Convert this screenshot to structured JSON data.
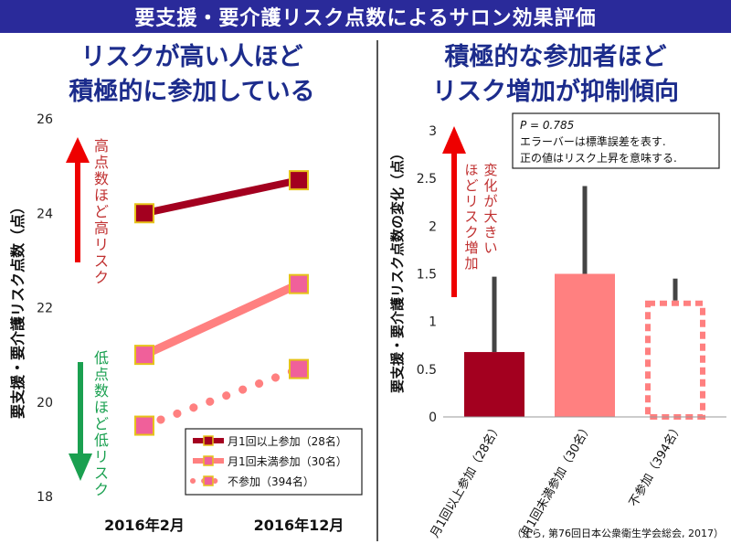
{
  "banner": "要支援・要介護リスク点数によるサロン効果評価",
  "left": {
    "heading1": "リスクが高い人ほど",
    "heading2": "積極的に参加している",
    "up_note": "高点数ほど高リスク",
    "down_note": "低点数ほど低リスク"
  },
  "right": {
    "heading1": "積極的な参加者ほど",
    "heading2": "リスク増加が抑制傾向",
    "up_note_col1": "変化が大きい",
    "up_note_col2": "ほどリスク増",
    "up_note_col3": "加",
    "stat_p": "P = 0.785",
    "stat_line2": "エラーバーは標準誤差を表す.",
    "stat_line3": "正の値はリスク上昇を意味する."
  },
  "source": "（辻ら, 第76回日本公衆衛生学会総会, 2017）",
  "colors": {
    "dark": "#a3001f",
    "pink": "#ff8080",
    "marker_fill": "#f0609a",
    "marker_border": "#e6c21a",
    "up": "#ee0000",
    "down": "#1aa050"
  },
  "chart_data": [
    {
      "type": "line",
      "ylabel": "要支援・要介護リスク点数（点）",
      "ylim": [
        18,
        26
      ],
      "yticks": [
        18,
        20,
        22,
        24,
        26
      ],
      "categories": [
        "2016年2月",
        "2016年12月"
      ],
      "legend_position": "bottom-right",
      "series": [
        {
          "name": "月1回以上参加（28名）",
          "values": [
            24.0,
            24.7
          ],
          "style": "solid-thick",
          "color": "#a3001f"
        },
        {
          "name": "月1回未満参加（30名）",
          "values": [
            21.0,
            22.5
          ],
          "style": "solid",
          "color": "#ff8080"
        },
        {
          "name": "不参加（394名）",
          "values": [
            19.5,
            20.7
          ],
          "style": "dotted",
          "color": "#ff8080"
        }
      ]
    },
    {
      "type": "bar",
      "ylabel": "要支援・要介護リスク点数の変化（点）",
      "ylim": [
        0,
        3
      ],
      "yticks": [
        0,
        0.5,
        1,
        1.5,
        2,
        2.5,
        3
      ],
      "categories": [
        "月1回以上参加（28名）",
        "月1回未満参加（30名）",
        "不参加（394名）"
      ],
      "values": [
        0.68,
        1.5,
        1.22
      ],
      "errors": [
        0.79,
        0.92,
        0.23
      ],
      "bar_styles": [
        "solid",
        "solid",
        "dotted-outline"
      ],
      "bar_colors": [
        "#a3001f",
        "#ff8080",
        "#ff8080"
      ]
    }
  ]
}
